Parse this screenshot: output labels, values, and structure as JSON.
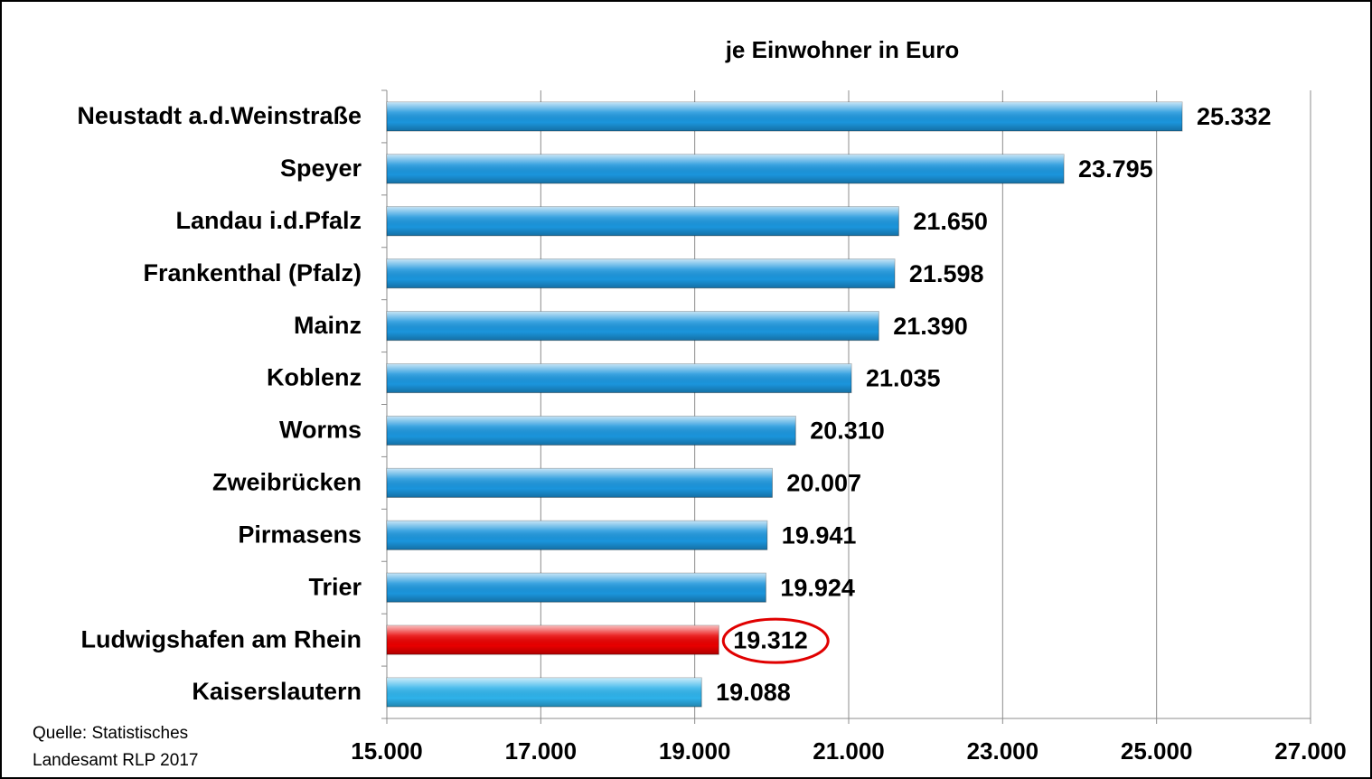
{
  "chart_data": {
    "type": "hbar",
    "title": "je Einwohner in Euro",
    "categories": [
      "Neustadt a.d.Weinstraße",
      "Speyer",
      "Landau i.d.Pfalz",
      "Frankenthal (Pfalz)",
      "Mainz",
      "Koblenz",
      "Worms",
      "Zweibrücken",
      "Pirmasens",
      "Trier",
      "Ludwigshafen am Rhein",
      "Kaiserslautern"
    ],
    "values": [
      25332,
      23795,
      21650,
      21598,
      21390,
      21035,
      20310,
      20007,
      19941,
      19924,
      19312,
      19088
    ],
    "value_labels": [
      "25.332",
      "23.795",
      "21.650",
      "21.598",
      "21.390",
      "21.035",
      "20.310",
      "20.007",
      "19.941",
      "19.924",
      "19.312",
      "19.088"
    ],
    "colors": [
      "#1b95dc",
      "#1b95dc",
      "#1b95dc",
      "#1b95dc",
      "#1b95dc",
      "#1b95dc",
      "#1b95dc",
      "#1b95dc",
      "#1b95dc",
      "#1b95dc",
      "#e80000",
      "#2eb2ea"
    ],
    "highlight_index": 10,
    "xlim": [
      15000,
      27000
    ],
    "xticks": [
      {
        "value": 15000,
        "label": "15.000"
      },
      {
        "value": 17000,
        "label": "17.000"
      },
      {
        "value": 19000,
        "label": "19.000"
      },
      {
        "value": 21000,
        "label": "21.000"
      },
      {
        "value": 23000,
        "label": "23.000"
      },
      {
        "value": 25000,
        "label": "25.000"
      },
      {
        "value": 27000,
        "label": "27.000"
      }
    ],
    "grid": true,
    "source": [
      "Quelle: Statistisches",
      "Landesamt RLP 2017"
    ]
  }
}
